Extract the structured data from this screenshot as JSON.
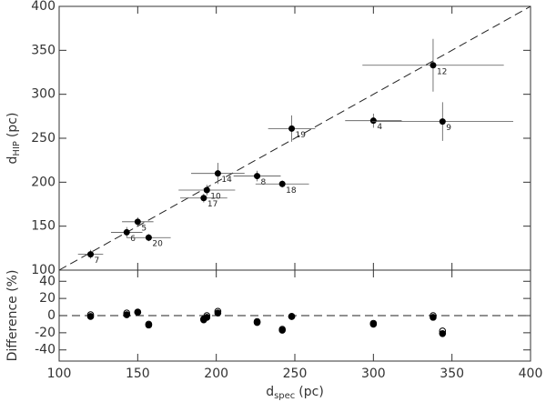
{
  "chart_data": [
    {
      "type": "scatter",
      "ylabel": {
        "main": "d",
        "sub": "HIP",
        "unit": "(pc)"
      },
      "x": [
        120,
        143,
        150,
        157,
        192,
        194,
        201,
        226,
        242,
        248,
        300,
        338,
        344
      ],
      "values": [
        118,
        143,
        155,
        137,
        182,
        191,
        210,
        207,
        198,
        261,
        270,
        333,
        269
      ],
      "xerr": [
        8,
        10,
        10,
        14,
        15,
        18,
        17,
        15,
        17,
        15,
        18,
        45,
        45
      ],
      "yerr": [
        5,
        6,
        5,
        4,
        5,
        6,
        12,
        6,
        4,
        15,
        8,
        30,
        22
      ],
      "point_labels": [
        "7",
        "6",
        "5",
        "20",
        "17",
        "10",
        "14",
        "8",
        "18",
        "19",
        "4",
        "12",
        "9"
      ],
      "color": "#000000",
      "identity_line": true,
      "xlim": [
        100,
        400
      ],
      "xticks": [
        100,
        150,
        200,
        250,
        300,
        350,
        400
      ],
      "ylim": [
        100,
        400
      ],
      "yticks": [
        100,
        150,
        200,
        250,
        300,
        350,
        400
      ]
    },
    {
      "type": "scatter",
      "xlabel": {
        "main": "d",
        "sub": "spec",
        "unit": "(pc)"
      },
      "ylabel": "Difference (%)",
      "x": [
        120,
        143,
        150,
        157,
        192,
        194,
        201,
        226,
        242,
        248,
        300,
        338,
        344
      ],
      "series": [
        {
          "name": "open",
          "color": "#ffffff",
          "values": [
            1,
            3,
            4,
            -10,
            -4,
            0,
            5,
            -7,
            -16,
            -1,
            -9,
            0,
            -18
          ]
        },
        {
          "name": "filled",
          "color": "#000000",
          "values": [
            -1,
            1,
            4,
            -11,
            -5,
            -2,
            3,
            -8,
            -17,
            -1,
            -10,
            -2,
            -21
          ]
        }
      ],
      "hline": 0,
      "xlim": [
        100,
        400
      ],
      "xticks": [
        100,
        150,
        200,
        250,
        300,
        350,
        400
      ],
      "ylim": [
        -53,
        53
      ],
      "yticks": [
        -40,
        -20,
        0,
        20,
        40
      ]
    }
  ]
}
